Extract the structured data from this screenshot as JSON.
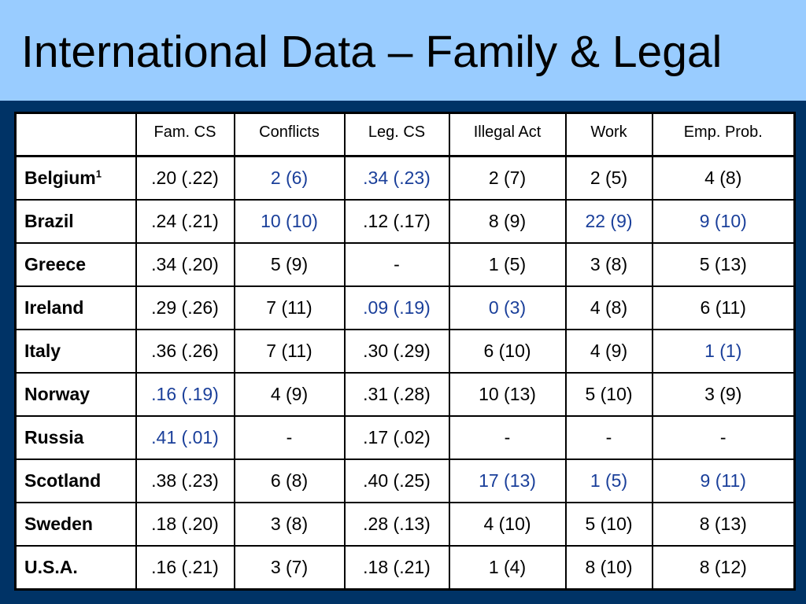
{
  "title": "International Data – Family & Legal",
  "colors": {
    "title_bg": "#99ccff",
    "frame_bg": "#003366",
    "highlight_text": "#1a3f9a"
  },
  "table": {
    "headers": [
      "",
      "Fam. CS",
      "Conflicts",
      "Leg. CS",
      "Illegal Act",
      "Work",
      "Emp. Prob."
    ],
    "rows": [
      {
        "country": "Belgium",
        "footnote": "1",
        "cells": [
          ".20 (.22)",
          "2 (6)",
          ".34 (.23)",
          "2 (7)",
          "2 (5)",
          "4 (8)"
        ],
        "highlight": [
          false,
          true,
          true,
          false,
          false,
          false
        ]
      },
      {
        "country": "Brazil",
        "footnote": "",
        "cells": [
          ".24 (.21)",
          "10 (10)",
          ".12 (.17)",
          "8 (9)",
          "22 (9)",
          "9 (10)"
        ],
        "highlight": [
          false,
          true,
          false,
          false,
          true,
          true
        ]
      },
      {
        "country": "Greece",
        "footnote": "",
        "cells": [
          ".34 (.20)",
          "5 (9)",
          "-",
          "1 (5)",
          "3 (8)",
          "5 (13)"
        ],
        "highlight": [
          false,
          false,
          false,
          false,
          false,
          false
        ]
      },
      {
        "country": "Ireland",
        "footnote": "",
        "cells": [
          ".29 (.26)",
          "7 (11)",
          ".09 (.19)",
          "0 (3)",
          "4 (8)",
          "6 (11)"
        ],
        "highlight": [
          false,
          false,
          true,
          true,
          false,
          false
        ]
      },
      {
        "country": "Italy",
        "footnote": "",
        "cells": [
          ".36 (.26)",
          "7 (11)",
          ".30 (.29)",
          "6 (10)",
          "4 (9)",
          "1 (1)"
        ],
        "highlight": [
          false,
          false,
          false,
          false,
          false,
          true
        ]
      },
      {
        "country": "Norway",
        "footnote": "",
        "cells": [
          ".16 (.19)",
          "4 (9)",
          ".31 (.28)",
          "10 (13)",
          "5 (10)",
          "3 (9)"
        ],
        "highlight": [
          true,
          false,
          false,
          false,
          false,
          false
        ]
      },
      {
        "country": "Russia",
        "footnote": "",
        "cells": [
          ".41 (.01)",
          "-",
          ".17 (.02)",
          "-",
          "-",
          "-"
        ],
        "highlight": [
          true,
          false,
          false,
          false,
          false,
          false
        ]
      },
      {
        "country": "Scotland",
        "footnote": "",
        "cells": [
          ".38 (.23)",
          "6 (8)",
          ".40 (.25)",
          "17 (13)",
          "1 (5)",
          "9 (11)"
        ],
        "highlight": [
          false,
          false,
          false,
          true,
          true,
          true
        ]
      },
      {
        "country": "Sweden",
        "footnote": "",
        "cells": [
          ".18 (.20)",
          "3 (8)",
          ".28 (.13)",
          "4 (10)",
          "5 (10)",
          "8 (13)"
        ],
        "highlight": [
          false,
          false,
          false,
          false,
          false,
          false
        ]
      },
      {
        "country": "U.S.A.",
        "footnote": "",
        "cells": [
          ".16 (.21)",
          "3 (7)",
          ".18 (.21)",
          "1 (4)",
          "8 (10)",
          "8 (12)"
        ],
        "highlight": [
          false,
          false,
          false,
          false,
          false,
          false
        ]
      }
    ]
  }
}
